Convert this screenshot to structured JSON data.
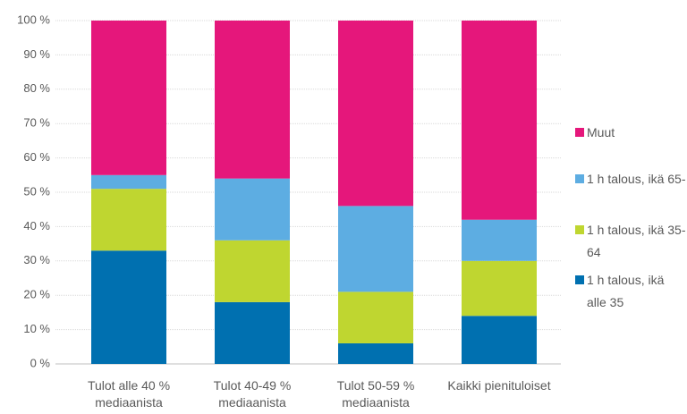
{
  "chart_data": {
    "type": "stacked_bar",
    "categories": [
      "Tulot alle 40 % mediaanista",
      "Tulot 40-49 % mediaanista",
      "Tulot 50-59 % mediaanista",
      "Kaikki pienituloiset"
    ],
    "series": [
      {
        "name": "1 h talous, ikä alle 35",
        "color": "#0070b0",
        "values": [
          33,
          18,
          6,
          14
        ]
      },
      {
        "name": "1 h talous, ikä 35-64",
        "color": "#bfd630",
        "values": [
          18,
          18,
          15,
          16
        ]
      },
      {
        "name": "1 h talous, ikä 65-",
        "color": "#5dade2",
        "values": [
          4,
          18,
          25,
          12
        ]
      },
      {
        "name": "Muut",
        "color": "#e5177b",
        "values": [
          45,
          46,
          54,
          58
        ]
      }
    ],
    "ylim": [
      0,
      100
    ],
    "yticks": [
      {
        "value": 0,
        "label": "0 %"
      },
      {
        "value": 10,
        "label": "10 %"
      },
      {
        "value": 20,
        "label": "20 %"
      },
      {
        "value": 30,
        "label": "30 %"
      },
      {
        "value": 40,
        "label": "40 %"
      },
      {
        "value": 50,
        "label": "50 %"
      },
      {
        "value": 60,
        "label": "60 %"
      },
      {
        "value": 70,
        "label": "70 %"
      },
      {
        "value": 80,
        "label": "80 %"
      },
      {
        "value": 90,
        "label": "90 %"
      },
      {
        "value": 100,
        "label": "100 %"
      }
    ],
    "grid": true,
    "legend": "right"
  }
}
